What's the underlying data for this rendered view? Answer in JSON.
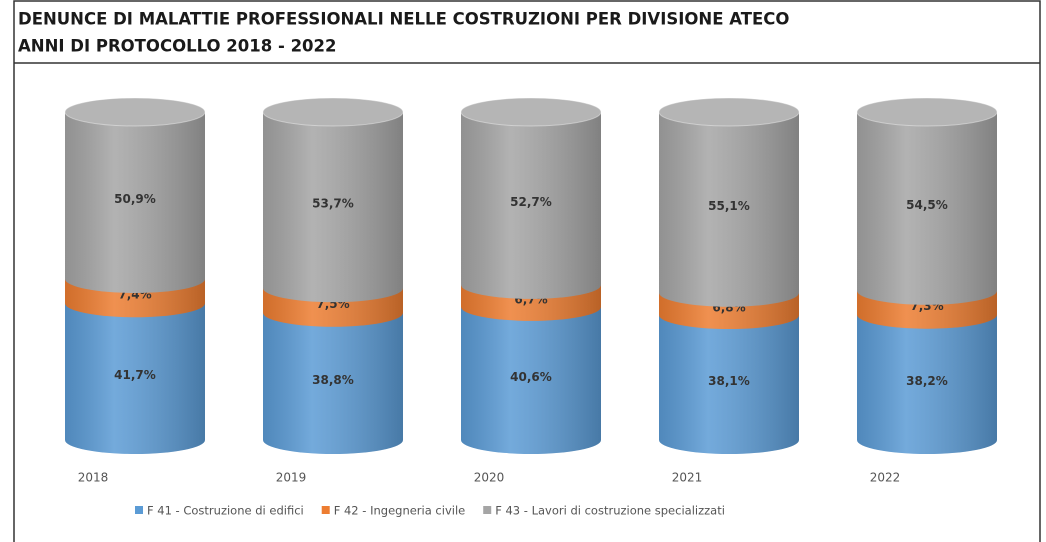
{
  "chart_data": {
    "type": "stacked-cylinder",
    "title": "DENUNCE DI MALATTIE PROFESSIONALI NELLE COSTRUZIONI PER DIVISIONE ATECO",
    "subtitle": "ANNI DI PROTOCOLLO 2018 - 2022",
    "categories": [
      "2018",
      "2019",
      "2020",
      "2021",
      "2022"
    ],
    "ylim": [
      0,
      100
    ],
    "series": [
      {
        "name": "F 41 - Costruzione di edifici",
        "color": "#5b9bd5",
        "values": [
          41.7,
          38.8,
          40.6,
          38.1,
          38.2
        ],
        "value_labels": [
          "41,7%",
          "38,8%",
          "40,6%",
          "38,1%",
          "38,2%"
        ]
      },
      {
        "name": "F 42 - Ingegneria civile",
        "color": "#ed7d31",
        "values": [
          7.4,
          7.5,
          6.7,
          6.8,
          7.3
        ],
        "value_labels": [
          "7,4%",
          "7,5%",
          "6,7%",
          "6,8%",
          "7,3%"
        ]
      },
      {
        "name": "F 43 - Lavori di costruzione specializzati",
        "color": "#a5a5a5",
        "values": [
          50.9,
          53.7,
          52.7,
          55.1,
          54.5
        ],
        "value_labels": [
          "50,9%",
          "53,7%",
          "52,7%",
          "55,1%",
          "54,5%"
        ]
      }
    ]
  }
}
